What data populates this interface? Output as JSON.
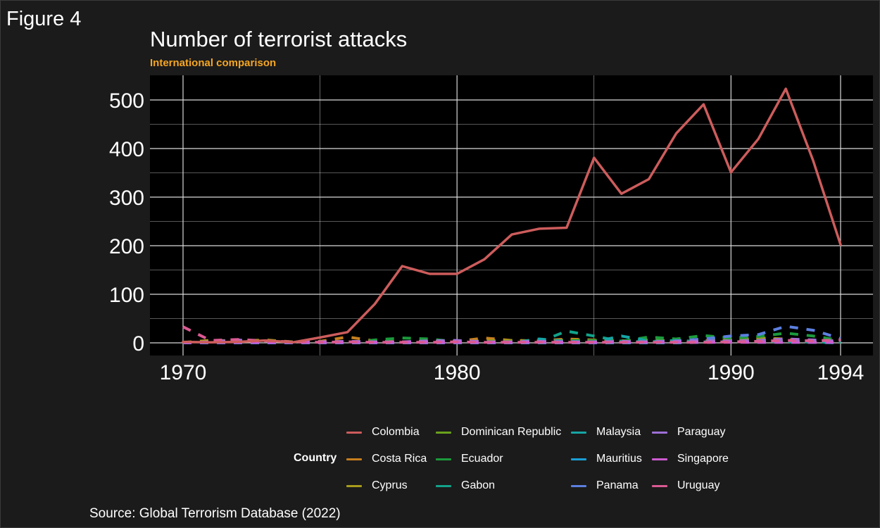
{
  "figure_label": "Figure 4",
  "source_text": "Source: Global Terrorism Database (2022)",
  "colors": {
    "background": "#1b1b1b",
    "panel": "#000000",
    "grid": "#d9d9d9",
    "subtitle": "#f5a623"
  },
  "chart_data": {
    "type": "line",
    "title": "Number of terrorist attacks",
    "subtitle": "International comparison",
    "xlabel": "",
    "ylabel": "",
    "xlim": [
      1970,
      1994
    ],
    "ylim": [
      -25,
      550
    ],
    "x_ticks": [
      1970,
      1980,
      1990,
      1994
    ],
    "y_ticks": [
      0,
      100,
      200,
      300,
      400,
      500
    ],
    "grid": true,
    "legend_title": "Country",
    "legend_position": "bottom",
    "x": [
      1970,
      1971,
      1972,
      1973,
      1974,
      1975,
      1976,
      1977,
      1978,
      1979,
      1980,
      1981,
      1982,
      1983,
      1984,
      1985,
      1986,
      1987,
      1988,
      1989,
      1990,
      1991,
      1992,
      1993,
      1994
    ],
    "series": [
      {
        "name": "Colombia",
        "color": "#cd5c5c",
        "dashed": false,
        "values": [
          2,
          1,
          2,
          5,
          1,
          11,
          22,
          80,
          158,
          142,
          142,
          172,
          223,
          235,
          237,
          381,
          307,
          337,
          431,
          491,
          351,
          420,
          523,
          375,
          202
        ]
      },
      {
        "name": "Costa Rica",
        "color": "#c77f1e",
        "dashed": true,
        "values": [
          1,
          2,
          3,
          3,
          1,
          3,
          12,
          4,
          2,
          3,
          3,
          10,
          5,
          4,
          8,
          6,
          4,
          3,
          4,
          4,
          5,
          9,
          7,
          4,
          3
        ]
      },
      {
        "name": "Cyprus",
        "color": "#a89c1c",
        "dashed": true,
        "values": [
          1,
          5,
          4,
          6,
          2,
          2,
          3,
          2,
          2,
          2,
          2,
          4,
          5,
          4,
          6,
          5,
          4,
          6,
          4,
          6,
          6,
          10,
          8,
          5,
          4
        ]
      },
      {
        "name": "Dominican Republic",
        "color": "#6aa11c",
        "dashed": true,
        "values": [
          0,
          0,
          0,
          0,
          0,
          0,
          0,
          2,
          2,
          2,
          2,
          3,
          3,
          2,
          2,
          3,
          4,
          6,
          3,
          4,
          5,
          6,
          4,
          2,
          1
        ]
      },
      {
        "name": "Ecuador",
        "color": "#1b9a3c",
        "dashed": true,
        "values": [
          0,
          0,
          0,
          0,
          0,
          0,
          0,
          6,
          10,
          8,
          2,
          2,
          1,
          2,
          4,
          5,
          3,
          12,
          8,
          15,
          10,
          13,
          20,
          14,
          5
        ]
      },
      {
        "name": "Gabon",
        "color": "#12a28a",
        "dashed": true,
        "values": [
          0,
          0,
          0,
          0,
          0,
          0,
          0,
          0,
          0,
          0,
          0,
          1,
          1,
          2,
          24,
          14,
          3,
          2,
          5,
          2,
          2,
          3,
          3,
          2,
          1
        ]
      },
      {
        "name": "Malaysia",
        "color": "#16a5a5",
        "dashed": true,
        "values": [
          0,
          0,
          0,
          0,
          0,
          0,
          0,
          0,
          0,
          0,
          0,
          0,
          0,
          8,
          3,
          2,
          14,
          4,
          2,
          2,
          3,
          4,
          2,
          1,
          1
        ]
      },
      {
        "name": "Mauritius",
        "color": "#1a9fd6",
        "dashed": true,
        "values": [
          0,
          0,
          0,
          0,
          0,
          0,
          0,
          0,
          0,
          0,
          0,
          0,
          0,
          0,
          0,
          0,
          0,
          0,
          0,
          1,
          2,
          1,
          1,
          1,
          0
        ]
      },
      {
        "name": "Panama",
        "color": "#5c7fe0",
        "dashed": true,
        "values": [
          0,
          0,
          0,
          0,
          0,
          0,
          0,
          0,
          0,
          0,
          0,
          0,
          0,
          1,
          0,
          0,
          2,
          2,
          4,
          8,
          14,
          17,
          34,
          26,
          9
        ]
      },
      {
        "name": "Paraguay",
        "color": "#9e6fd6",
        "dashed": true,
        "values": [
          0,
          2,
          6,
          2,
          1,
          2,
          3,
          2,
          2,
          4,
          5,
          2,
          2,
          3,
          2,
          2,
          3,
          2,
          3,
          4,
          4,
          5,
          8,
          6,
          3
        ]
      },
      {
        "name": "Singapore",
        "color": "#cc5bd1",
        "dashed": true,
        "values": [
          1,
          1,
          1,
          1,
          1,
          1,
          1,
          1,
          1,
          1,
          1,
          1,
          1,
          1,
          1,
          1,
          1,
          1,
          1,
          1,
          1,
          1,
          1,
          1,
          1
        ]
      },
      {
        "name": "Uruguay",
        "color": "#db5a92",
        "dashed": true,
        "values": [
          33,
          5,
          7,
          4,
          2,
          1,
          2,
          1,
          1,
          1,
          2,
          1,
          1,
          1,
          1,
          1,
          1,
          1,
          1,
          1,
          2,
          3,
          5,
          4,
          6
        ]
      }
    ]
  }
}
